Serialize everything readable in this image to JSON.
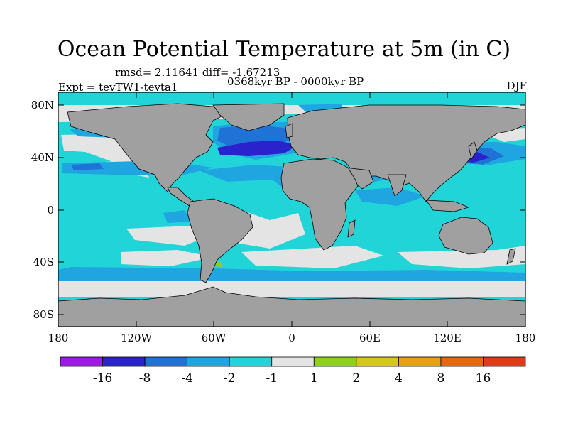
{
  "title": "Ocean Potential Temperature at 5m (in C)",
  "stats": "rmsd= 2.11641 diff= -1.67213",
  "period": "0368kyr BP - 0000kyr BP",
  "experiment": "Expt = tevTW1-tevta1",
  "season": "DJF",
  "lat_labels": [
    "80N",
    "40N",
    "0",
    "40S",
    "80S"
  ],
  "lon_labels": [
    "180",
    "120W",
    "60W",
    "0",
    "60E",
    "120E",
    "180"
  ],
  "colorbar": {
    "labels": [
      "-16",
      "-8",
      "-4",
      "-2",
      "-1",
      "1",
      "2",
      "4",
      "8",
      "16"
    ],
    "colors": [
      "#9a1ae6",
      "#2a22cc",
      "#1f73d6",
      "#1fa5e0",
      "#20d4d8",
      "#e4e4e4",
      "#8fd11a",
      "#d4c81a",
      "#e8a010",
      "#e8680f",
      "#e03a1a"
    ]
  },
  "colors": {
    "land": "#a0a0a0",
    "neutral": "#e4e4e4",
    "cyan": "#20d4d8",
    "light_blue": "#1fa5e0",
    "blue": "#1f73d6",
    "dark_blue": "#2a22cc"
  }
}
